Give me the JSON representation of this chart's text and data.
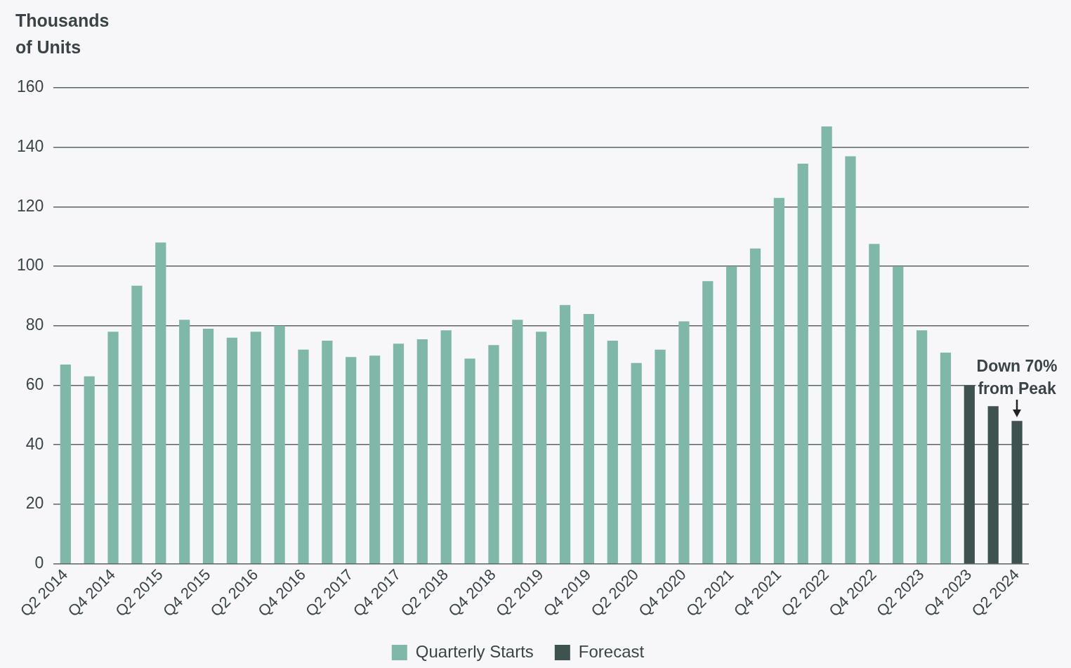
{
  "chart_data": {
    "type": "bar",
    "ylabel": "Thousands of Units",
    "categories": [
      "Q2 2014",
      null,
      "Q4 2014",
      null,
      "Q2 2015",
      null,
      "Q4 2015",
      null,
      "Q2 2016",
      null,
      "Q4 2016",
      null,
      "Q2 2017",
      null,
      "Q4 2017",
      null,
      "Q2 2018",
      null,
      "Q4 2018",
      null,
      "Q2 2019",
      null,
      "Q4 2019",
      null,
      "Q2 2020",
      null,
      "Q4 2020",
      null,
      "Q2 2021",
      null,
      "Q4 2021",
      null,
      "Q2 2022",
      null,
      "Q4 2022",
      null,
      "Q2 2023",
      null,
      "Q4 2023",
      null,
      "Q2 2024"
    ],
    "series": [
      {
        "name": "Quarterly Starts",
        "color": "#7fb8a8",
        "values": [
          67,
          63,
          78,
          93.5,
          108,
          82,
          79,
          76,
          78,
          80,
          72,
          75,
          69.5,
          70,
          74,
          75.5,
          78.5,
          69,
          73.5,
          82,
          78,
          87,
          84,
          75,
          67.5,
          72,
          81.5,
          95,
          100,
          106,
          123,
          134.5,
          147,
          137,
          107.5,
          100,
          78.5,
          71,
          null,
          null,
          null
        ]
      },
      {
        "name": "Forecast",
        "color": "#3e5250",
        "values": [
          null,
          null,
          null,
          null,
          null,
          null,
          null,
          null,
          null,
          null,
          null,
          null,
          null,
          null,
          null,
          null,
          null,
          null,
          null,
          null,
          null,
          null,
          null,
          null,
          null,
          null,
          null,
          null,
          null,
          null,
          null,
          null,
          null,
          null,
          null,
          null,
          null,
          null,
          60,
          53,
          48
        ]
      }
    ],
    "ylim": [
      0,
      160
    ],
    "yticks": [
      0,
      20,
      40,
      60,
      80,
      100,
      120,
      140,
      160
    ],
    "grid": "y",
    "legend": "bottom",
    "annotations": [
      {
        "text": "Down 70% from Peak",
        "x": "Q2 2024",
        "y": 48
      }
    ]
  }
}
